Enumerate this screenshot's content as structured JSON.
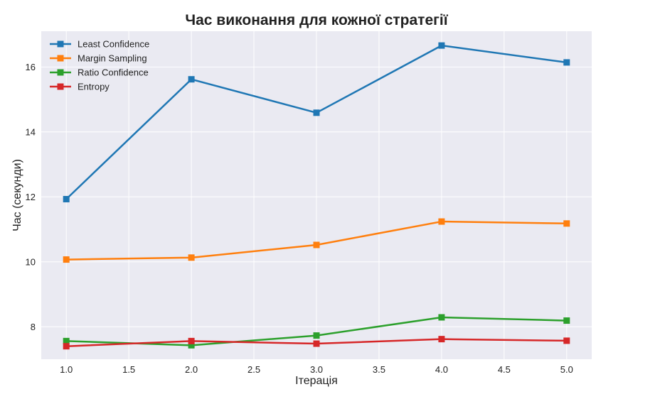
{
  "chart_data": {
    "type": "line",
    "title": "Час виконання для кожної стратегії",
    "xlabel": "Ітерація",
    "ylabel": "Час (секунди)",
    "xlim": [
      0.8,
      5.2
    ],
    "ylim": [
      7.0,
      17.1
    ],
    "xticks": [
      1.0,
      1.5,
      2.0,
      2.5,
      3.0,
      3.5,
      4.0,
      4.5,
      5.0
    ],
    "xtick_labels": [
      "1.0",
      "1.5",
      "2.0",
      "2.5",
      "3.0",
      "3.5",
      "4.0",
      "4.5",
      "5.0"
    ],
    "yticks": [
      8,
      10,
      12,
      14,
      16
    ],
    "ytick_labels": [
      "8",
      "10",
      "12",
      "14",
      "16"
    ],
    "grid": true,
    "legend_position": "top-left",
    "x": [
      1,
      2,
      3,
      4,
      5
    ],
    "series": [
      {
        "name": "Least Confidence",
        "color": "#1f77b4",
        "marker": "square",
        "values": [
          11.93,
          15.62,
          14.59,
          16.66,
          16.14
        ]
      },
      {
        "name": "Margin Sampling",
        "color": "#ff7f0e",
        "marker": "square",
        "values": [
          10.07,
          10.13,
          10.52,
          11.24,
          11.18
        ]
      },
      {
        "name": "Ratio Confidence",
        "color": "#2ca02c",
        "marker": "square",
        "values": [
          7.56,
          7.43,
          7.73,
          8.29,
          8.19
        ]
      },
      {
        "name": "Entropy",
        "color": "#d62728",
        "marker": "square",
        "values": [
          7.4,
          7.56,
          7.48,
          7.62,
          7.57
        ]
      }
    ]
  }
}
